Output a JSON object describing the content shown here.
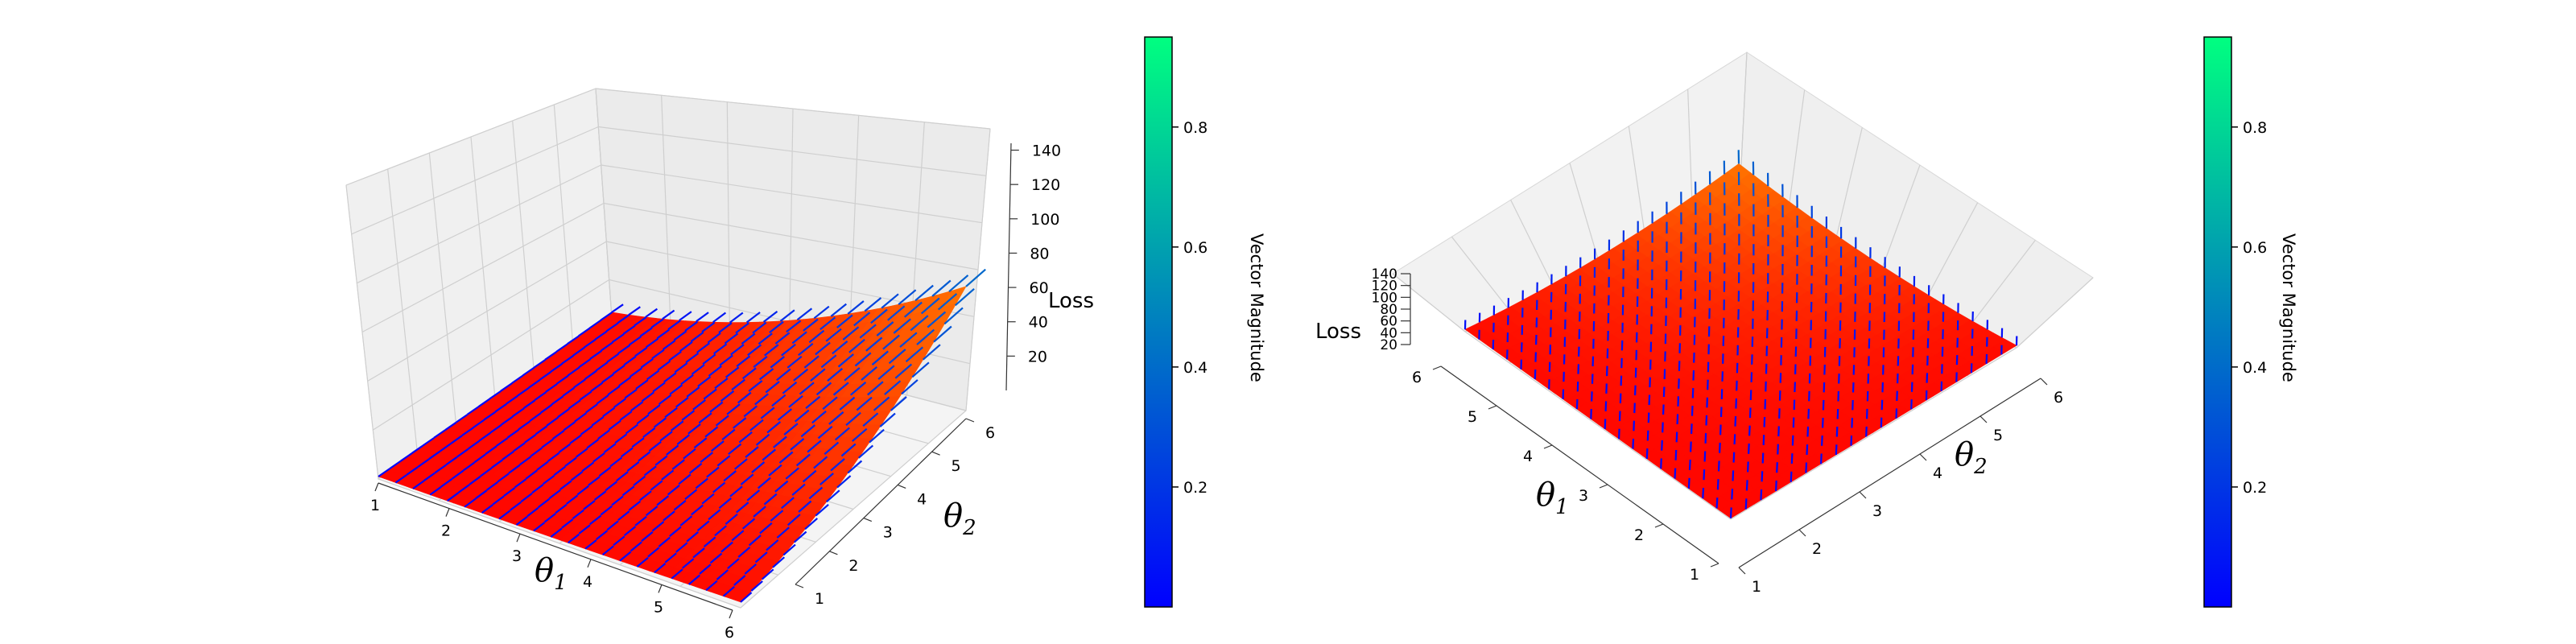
{
  "figure": {
    "panels": [
      {
        "id": "left",
        "z_axis_label": "Loss",
        "x_axis_label": "θ",
        "x_axis_sub": "1",
        "y_axis_label": "θ",
        "y_axis_sub": "2",
        "x_ticks": [
          "1",
          "2",
          "3",
          "4",
          "5",
          "6"
        ],
        "y_ticks": [
          "1",
          "2",
          "3",
          "4",
          "5",
          "6"
        ],
        "z_ticks": [
          "20",
          "40",
          "60",
          "80",
          "100",
          "120",
          "140"
        ],
        "colorbar": {
          "label": "Vector Magnitude",
          "ticks": [
            "0.2",
            "0.4",
            "0.6",
            "0.8"
          ]
        }
      },
      {
        "id": "right",
        "z_axis_label": "Loss",
        "x_axis_label": "θ",
        "x_axis_sub": "1",
        "y_axis_label": "θ",
        "y_axis_sub": "2",
        "x_ticks": [
          "1",
          "2",
          "3",
          "4",
          "5",
          "6"
        ],
        "y_ticks": [
          "1",
          "2",
          "3",
          "4",
          "5",
          "6"
        ],
        "z_ticks": [
          "20",
          "40",
          "60",
          "80",
          "100",
          "120",
          "140"
        ],
        "colorbar": {
          "label": "Vector Magnitude",
          "ticks": [
            "0.2",
            "0.4",
            "0.6",
            "0.8"
          ]
        }
      }
    ]
  },
  "chart_data": [
    {
      "type": "surface3d",
      "description": "Loss surface over θ1 and θ2 with a quiver field colored by vector magnitude",
      "x_name": "θ1",
      "y_name": "θ2",
      "z_name": "Loss",
      "xlim": [
        1,
        6
      ],
      "ylim": [
        1,
        6
      ],
      "zlim": [
        0,
        145
      ],
      "grid": true,
      "surface_colormap": "autumn",
      "quiver_colormap": "winter",
      "colorbar_range": [
        0.0,
        0.95
      ],
      "grid_points": [
        1,
        1.625,
        2.25,
        2.875,
        3.5,
        4.125,
        4.75,
        5.375,
        6
      ],
      "loss_function": "0.14 * (x*y)^2 approx; 1 at (1,1), ~36 at (6,1) and (1,6), ~140 at (6,6)",
      "sample_values": [
        {
          "x": 1,
          "y": 1,
          "z": 1
        },
        {
          "x": 6,
          "y": 1,
          "z": 36
        },
        {
          "x": 1,
          "y": 6,
          "z": 36
        },
        {
          "x": 3.5,
          "y": 3.5,
          "z": 20
        },
        {
          "x": 6,
          "y": 6,
          "z": 140
        }
      ]
    },
    {
      "type": "surface3d",
      "description": "Same loss surface seen from above (high elevation view)",
      "x_name": "θ1",
      "y_name": "θ2",
      "z_name": "Loss",
      "xlim": [
        1,
        6
      ],
      "ylim": [
        1,
        6
      ],
      "zlim": [
        0,
        145
      ],
      "grid": true,
      "surface_colormap": "autumn",
      "quiver_colormap": "winter",
      "colorbar_range": [
        0.0,
        0.95
      ],
      "sample_values": [
        {
          "x": 1,
          "y": 1,
          "z": 1
        },
        {
          "x": 6,
          "y": 6,
          "z": 140
        }
      ]
    }
  ]
}
